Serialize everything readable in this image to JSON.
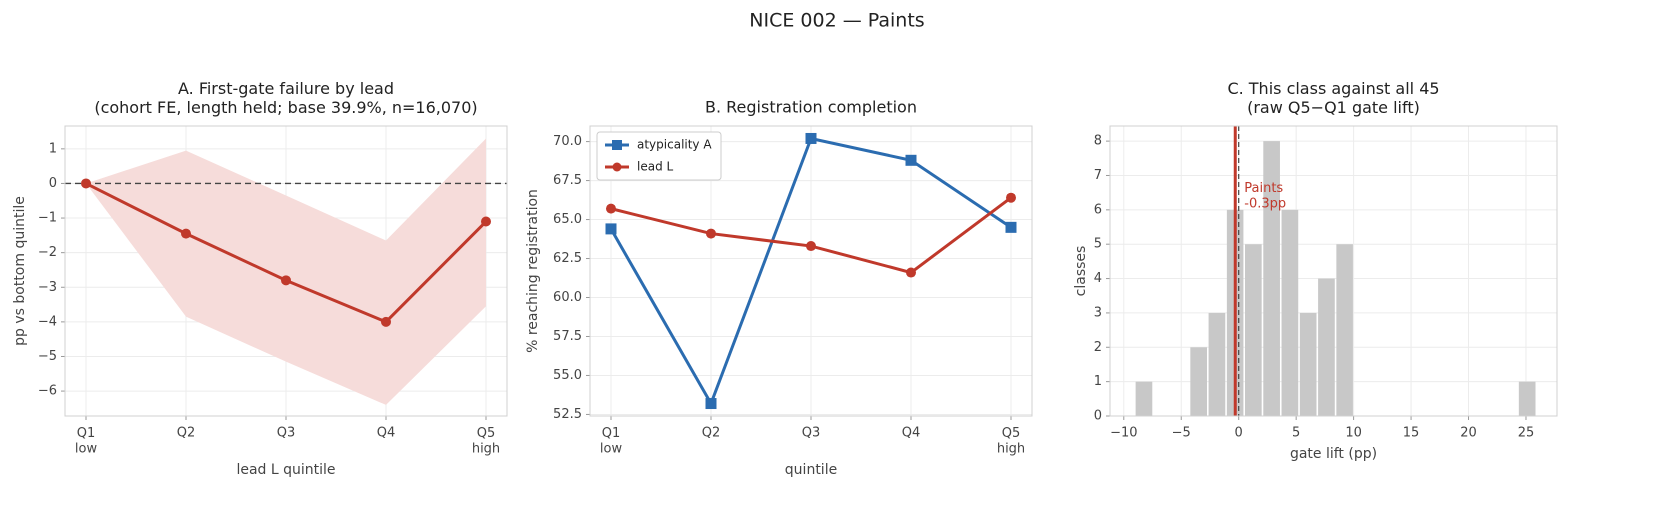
{
  "title": "NICE 002 — Paints",
  "chart_data": [
    {
      "type": "line",
      "title": "A. First-gate failure by lead\n(cohort FE, length held; base 39.9%, n=16,070)",
      "xlabel": "lead L quintile",
      "ylabel": "pp vs bottom quintile",
      "categories": [
        "Q1\nlow",
        "Q2",
        "Q3",
        "Q4",
        "Q5\nhigh"
      ],
      "series": [
        {
          "color": "#c0392b",
          "marker": "circle",
          "values": [
            0,
            -1.45,
            -2.8,
            -4.0,
            -1.1
          ],
          "band_lower": [
            0,
            -3.85,
            -5.15,
            -6.4,
            -3.55
          ],
          "band_upper": [
            0,
            0.95,
            -0.35,
            -1.65,
            1.3
          ],
          "band_color": "#f6dcda"
        }
      ],
      "reference_line": 0,
      "ylim": [
        -6.72,
        1.66
      ],
      "yticks": [
        {
          "value": -6,
          "label": "−6"
        },
        {
          "value": -5,
          "label": "−5"
        },
        {
          "value": -4,
          "label": "−4"
        },
        {
          "value": -3,
          "label": "−3"
        },
        {
          "value": -2,
          "label": "−2"
        },
        {
          "value": -1,
          "label": "−1"
        },
        0,
        1
      ],
      "grid": true
    },
    {
      "type": "line",
      "title": "B. Registration completion",
      "xlabel": "quintile",
      "ylabel": "% reaching registration",
      "categories": [
        "Q1\nlow",
        "Q2",
        "Q3",
        "Q4",
        "Q5\nhigh"
      ],
      "series": [
        {
          "name": "atypicality A",
          "color": "#2b6cb0",
          "marker": "square",
          "values": [
            64.4,
            53.2,
            70.2,
            68.8,
            64.5
          ]
        },
        {
          "name": "lead L",
          "color": "#c0392b",
          "marker": "circle",
          "values": [
            65.7,
            64.1,
            63.3,
            61.6,
            66.4
          ]
        }
      ],
      "legend": "upper left",
      "ylim": [
        52.4,
        71.0
      ],
      "yticks": [
        {
          "value": 52.5,
          "label": "52.5"
        },
        {
          "value": 55,
          "label": "55.0"
        },
        {
          "value": 57.5,
          "label": "57.5"
        },
        {
          "value": 60,
          "label": "60.0"
        },
        {
          "value": 62.5,
          "label": "62.5"
        },
        {
          "value": 65,
          "label": "65.0"
        },
        {
          "value": 67.5,
          "label": "67.5"
        },
        {
          "value": 70,
          "label": "70.0"
        }
      ],
      "grid": true
    },
    {
      "type": "histogram",
      "title": "C. This class against all 45\n(raw Q5−Q1 gate lift)",
      "xlabel": "gate lift (pp)",
      "ylabel": "classes",
      "bins": [
        -9.04,
        -7.45,
        -5.86,
        -4.28,
        -2.69,
        -1.1,
        0.48,
        2.07,
        3.66,
        5.25,
        6.84,
        8.43,
        10.01,
        11.6,
        13.19,
        14.78,
        16.37,
        17.95,
        19.54,
        21.13,
        22.72,
        24.31,
        25.9
      ],
      "counts": [
        1,
        0,
        0,
        2,
        3,
        6,
        5,
        8,
        6,
        3,
        4,
        5,
        0,
        0,
        0,
        0,
        0,
        0,
        0,
        0,
        0,
        1
      ],
      "color": "#c8c8c8",
      "highlight": {
        "value": -0.3,
        "label": "Paints\n-0.3pp",
        "color": "#c0392b"
      },
      "reference_line": 0,
      "xlim": [
        -11.2,
        27.7
      ],
      "ylim": [
        0,
        8.44
      ],
      "xticks": [
        {
          "value": -10,
          "label": "−10"
        },
        {
          "value": -5,
          "label": "−5"
        },
        0,
        5,
        10,
        15,
        20,
        25
      ],
      "yticks": [
        0,
        1,
        2,
        3,
        4,
        5,
        6,
        7,
        8
      ],
      "grid": true
    }
  ]
}
